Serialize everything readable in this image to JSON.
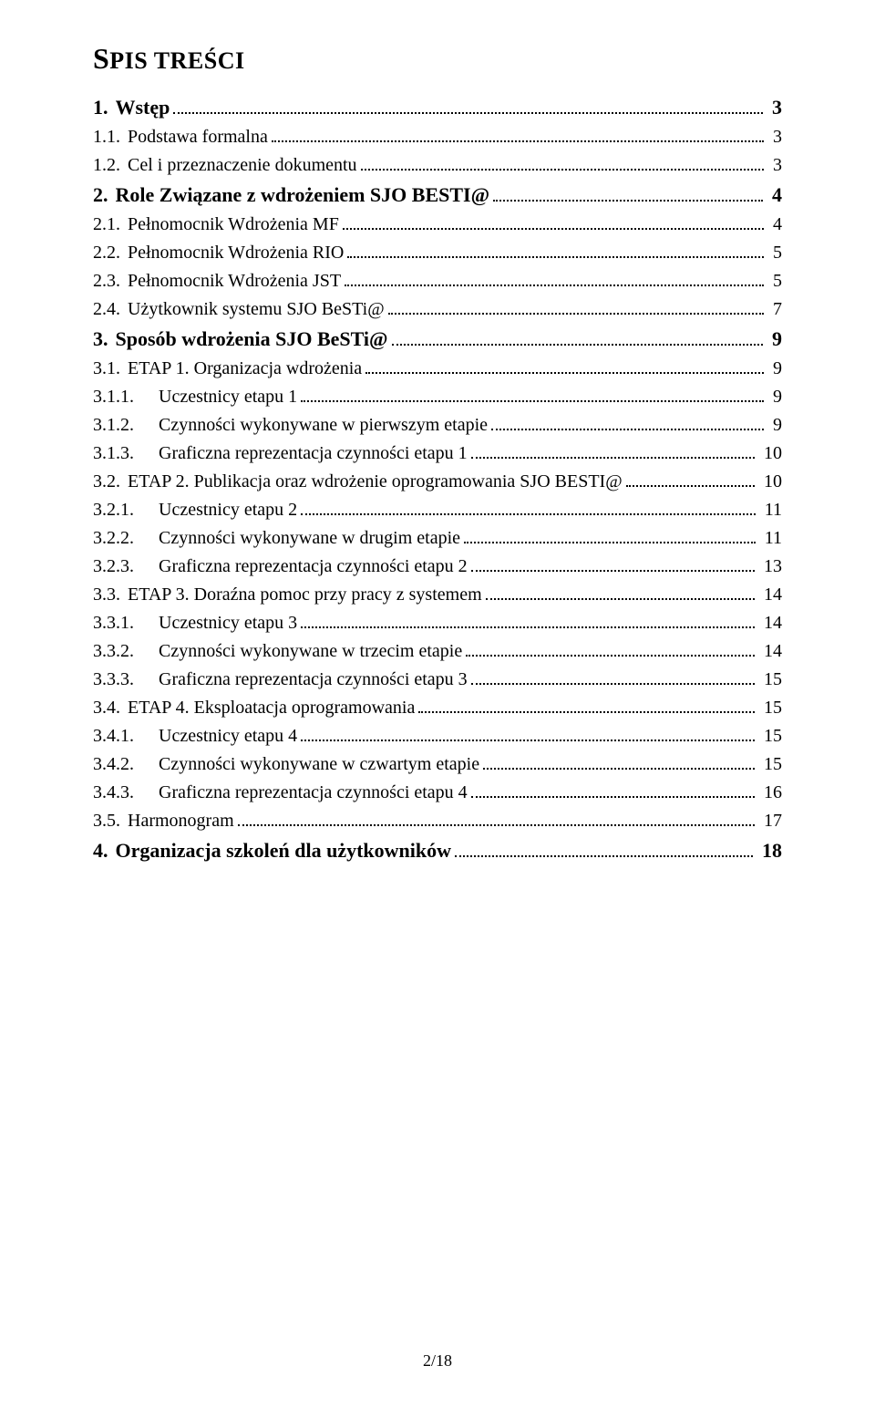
{
  "title_first": "S",
  "title_rest": "PIS TREŚCI",
  "footer": "2/18",
  "toc": [
    {
      "level": 1,
      "num": "1.",
      "label": "Wstęp",
      "page": "3"
    },
    {
      "level": 2,
      "num": "1.1.",
      "label": "Podstawa formalna",
      "page": "3"
    },
    {
      "level": 2,
      "num": "1.2.",
      "label": "Cel i przeznaczenie dokumentu",
      "page": "3"
    },
    {
      "level": 1,
      "num": "2.",
      "label": "Role Związane z wdrożeniem SJO BESTI@",
      "page": "4"
    },
    {
      "level": 2,
      "num": "2.1.",
      "label": "Pełnomocnik Wdrożenia MF",
      "page": "4"
    },
    {
      "level": 2,
      "num": "2.2.",
      "label": "Pełnomocnik Wdrożenia RIO",
      "page": "5"
    },
    {
      "level": 2,
      "num": "2.3.",
      "label": "Pełnomocnik Wdrożenia JST",
      "page": "5"
    },
    {
      "level": 2,
      "num": "2.4.",
      "label": "Użytkownik systemu SJO BeSTi@",
      "page": "7"
    },
    {
      "level": 1,
      "num": "3.",
      "label": "Sposób wdrożenia SJO BeSTi@",
      "page": "9"
    },
    {
      "level": 2,
      "num": "3.1.",
      "label": "ETAP 1. Organizacja wdrożenia",
      "page": "9"
    },
    {
      "level": 3,
      "num": "3.1.1.",
      "label": "Uczestnicy etapu 1",
      "page": "9"
    },
    {
      "level": 3,
      "num": "3.1.2.",
      "label": "Czynności wykonywane w pierwszym etapie",
      "page": "9"
    },
    {
      "level": 3,
      "num": "3.1.3.",
      "label": "Graficzna reprezentacja czynności etapu 1",
      "page": "10"
    },
    {
      "level": 2,
      "num": "3.2.",
      "label": "ETAP 2. Publikacja oraz wdrożenie oprogramowania SJO BESTI@",
      "page": "10"
    },
    {
      "level": 3,
      "num": "3.2.1.",
      "label": "Uczestnicy etapu 2",
      "page": "11"
    },
    {
      "level": 3,
      "num": "3.2.2.",
      "label": "Czynności wykonywane w drugim etapie",
      "page": "11"
    },
    {
      "level": 3,
      "num": "3.2.3.",
      "label": "Graficzna reprezentacja czynności etapu 2",
      "page": "13"
    },
    {
      "level": 2,
      "num": "3.3.",
      "label": "ETAP 3. Doraźna pomoc przy pracy z systemem",
      "page": "14"
    },
    {
      "level": 3,
      "num": "3.3.1.",
      "label": "Uczestnicy etapu 3",
      "page": "14"
    },
    {
      "level": 3,
      "num": "3.3.2.",
      "label": "Czynności wykonywane w trzecim etapie",
      "page": "14"
    },
    {
      "level": 3,
      "num": "3.3.3.",
      "label": "Graficzna reprezentacja czynności etapu 3",
      "page": "15"
    },
    {
      "level": 2,
      "num": "3.4.",
      "label": "ETAP 4. Eksploatacja oprogramowania",
      "page": "15"
    },
    {
      "level": 3,
      "num": "3.4.1.",
      "label": "Uczestnicy etapu 4",
      "page": "15"
    },
    {
      "level": 3,
      "num": "3.4.2.",
      "label": "Czynności wykonywane w czwartym etapie",
      "page": "15"
    },
    {
      "level": 3,
      "num": "3.4.3.",
      "label": "Graficzna reprezentacja czynności etapu 4",
      "page": "16"
    },
    {
      "level": 2,
      "num": "3.5.",
      "label": "Harmonogram",
      "page": "17"
    },
    {
      "level": 1,
      "num": "4.",
      "label": "Organizacja szkoleń dla użytkowników",
      "page": "18"
    }
  ]
}
